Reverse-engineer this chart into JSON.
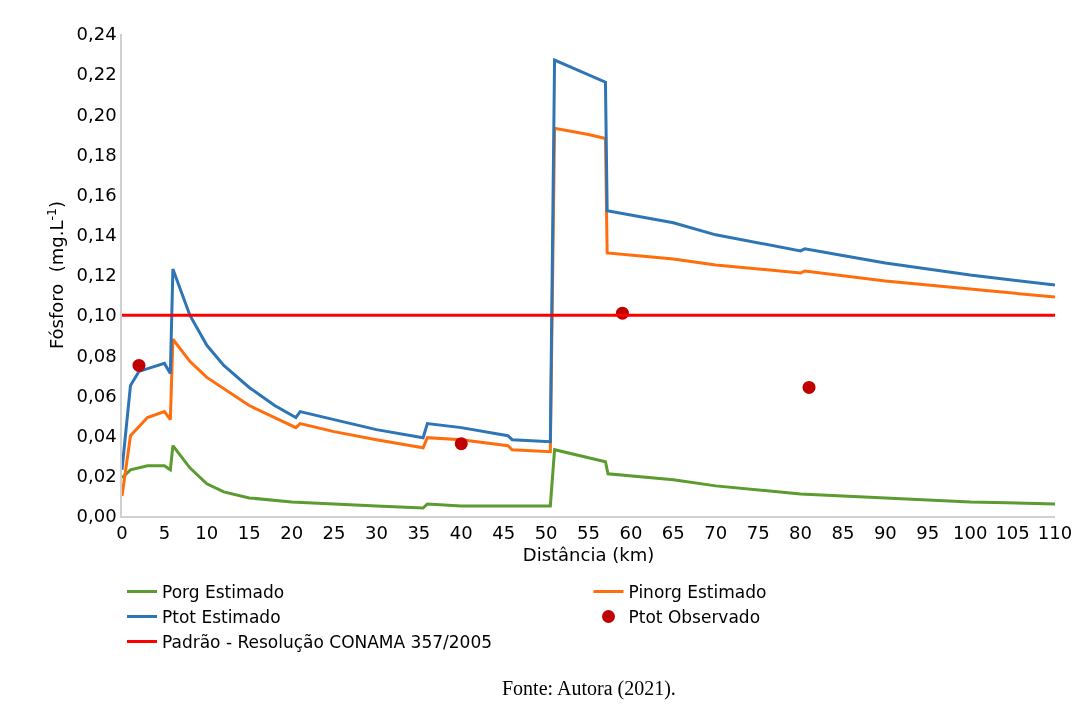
{
  "chart_data": {
    "type": "line",
    "xlabel": "Distância (km)",
    "ylabel": "Fósforo  (mg.L$^{-1}$)",
    "xlim": [
      0,
      110
    ],
    "xticks": [
      0,
      5,
      10,
      15,
      20,
      25,
      30,
      35,
      40,
      45,
      50,
      55,
      60,
      65,
      70,
      75,
      80,
      85,
      90,
      95,
      100,
      105,
      110
    ],
    "ylim": [
      0,
      0.24
    ],
    "yticks": [
      {
        "value": 0,
        "label": "0,00"
      },
      {
        "value": 0.02,
        "label": "0,02"
      },
      {
        "value": 0.04,
        "label": "0,04"
      },
      {
        "value": 0.06,
        "label": "0,06"
      },
      {
        "value": 0.08,
        "label": "0,08"
      },
      {
        "value": 0.1,
        "label": "0,10"
      },
      {
        "value": 0.12,
        "label": "0,12"
      },
      {
        "value": 0.14,
        "label": "0,14"
      },
      {
        "value": 0.16,
        "label": "0,16"
      },
      {
        "value": 0.18,
        "label": "0,18"
      },
      {
        "value": 0.2,
        "label": "0,20"
      },
      {
        "value": 0.22,
        "label": "0,22"
      },
      {
        "value": 0.24,
        "label": "0,24"
      }
    ],
    "legend": "bottom",
    "marker": "none",
    "line_style": "solid",
    "series": [
      {
        "name": "Porg Estimado",
        "color": "#5b9b2f",
        "x": [
          0,
          1,
          3,
          5,
          5.7,
          6,
          8,
          10,
          12,
          15,
          20,
          25,
          30,
          35.5,
          36,
          40,
          50.5,
          51,
          55,
          57,
          57.3,
          65,
          70,
          80,
          90,
          100,
          110
        ],
        "values": [
          0.019,
          0.023,
          0.025,
          0.025,
          0.023,
          0.035,
          0.024,
          0.016,
          0.012,
          0.009,
          0.007,
          0.006,
          0.005,
          0.004,
          0.006,
          0.005,
          0.005,
          0.033,
          0.029,
          0.027,
          0.021,
          0.018,
          0.015,
          0.011,
          0.009,
          0.007,
          0.006
        ]
      },
      {
        "name": "Pinorg Estimado",
        "color": "#ff6d0d",
        "x": [
          0,
          1,
          3,
          5,
          5.7,
          6,
          8,
          10,
          15,
          20.5,
          21,
          25,
          30,
          35.5,
          36,
          40,
          45.5,
          46,
          50.5,
          51,
          55,
          57,
          57.2,
          65,
          70,
          80,
          80.5,
          90,
          100,
          110
        ],
        "values": [
          0.01,
          0.04,
          0.049,
          0.052,
          0.048,
          0.088,
          0.077,
          0.069,
          0.055,
          0.044,
          0.046,
          0.042,
          0.038,
          0.034,
          0.039,
          0.038,
          0.035,
          0.033,
          0.032,
          0.193,
          0.19,
          0.188,
          0.131,
          0.128,
          0.125,
          0.121,
          0.122,
          0.117,
          0.113,
          0.109
        ]
      },
      {
        "name": "Ptot Estimado",
        "color": "#2e75b6",
        "x": [
          0,
          1,
          2,
          5,
          5.7,
          6,
          8,
          10,
          12,
          15,
          18,
          20.5,
          21,
          25,
          30,
          35.5,
          36,
          40,
          45.5,
          46,
          50.5,
          51,
          57,
          57.2,
          65,
          70,
          80,
          80.5,
          90,
          100,
          110
        ],
        "values": [
          0.023,
          0.065,
          0.072,
          0.076,
          0.071,
          0.123,
          0.1,
          0.085,
          0.075,
          0.064,
          0.055,
          0.049,
          0.052,
          0.048,
          0.043,
          0.039,
          0.046,
          0.044,
          0.04,
          0.038,
          0.037,
          0.227,
          0.216,
          0.152,
          0.146,
          0.14,
          0.132,
          0.133,
          0.126,
          0.12,
          0.115
        ]
      },
      {
        "name": "Ptot Observado",
        "color": "#c00000",
        "type": "scatter",
        "marker": "circle",
        "x": [
          2,
          40,
          59,
          81
        ],
        "values": [
          0.075,
          0.036,
          0.101,
          0.064
        ]
      },
      {
        "name": "Padrão - Resolução CONAMA 357/2005",
        "color": "#ff0000",
        "x": [
          0,
          110
        ],
        "values": [
          0.1,
          0.1
        ]
      }
    ],
    "annotations": [
      "Fonte: Autora (2021)."
    ]
  }
}
